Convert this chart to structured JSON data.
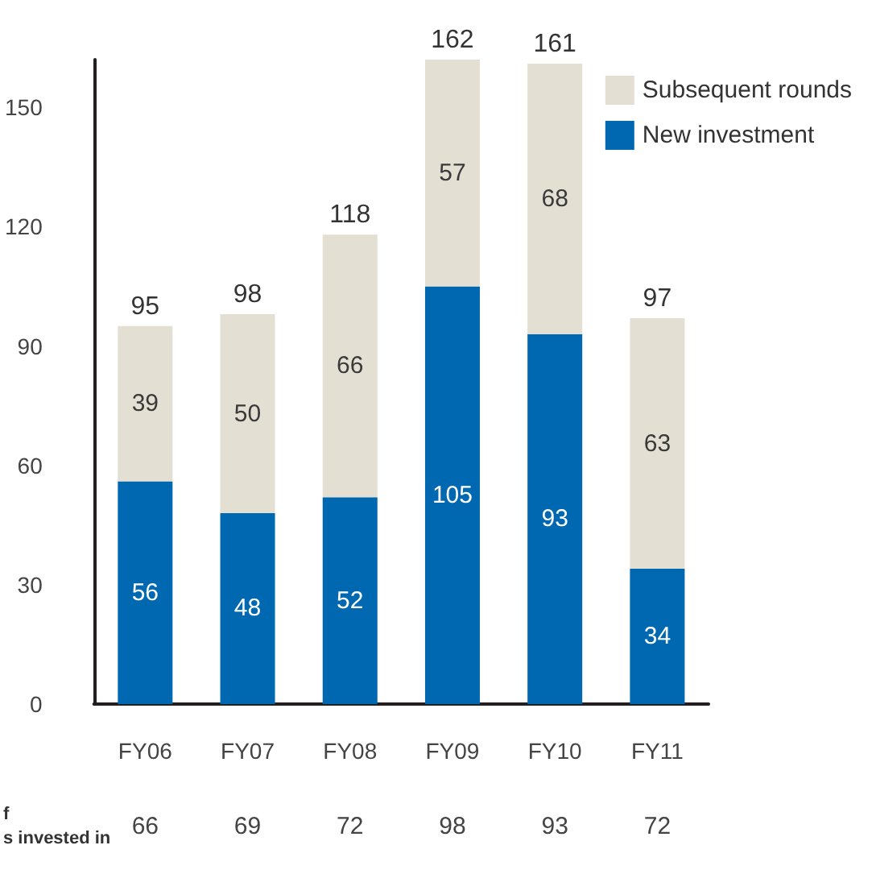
{
  "chart_data": {
    "type": "bar",
    "stacked": true,
    "categories": [
      "FY06",
      "FY07",
      "FY08",
      "FY09",
      "FY10",
      "FY11"
    ],
    "series": [
      {
        "name": "New investment",
        "color": "#0068b0",
        "values": [
          56,
          48,
          52,
          105,
          93,
          34
        ]
      },
      {
        "name": "Subsequent rounds",
        "color": "#e3dfd3",
        "values": [
          39,
          50,
          66,
          57,
          68,
          63
        ]
      }
    ],
    "totals": [
      "95",
      "98",
      "118",
      "162",
      "161",
      "97"
    ],
    "data_labels": true,
    "ylim": [
      0,
      162
    ],
    "yticks": [
      0,
      30,
      60,
      90,
      120,
      150
    ],
    "grid": false,
    "legend": "top right",
    "annotations": [
      "f\ns invested in",
      "66",
      "69",
      "72",
      "98",
      "93",
      "72"
    ]
  }
}
